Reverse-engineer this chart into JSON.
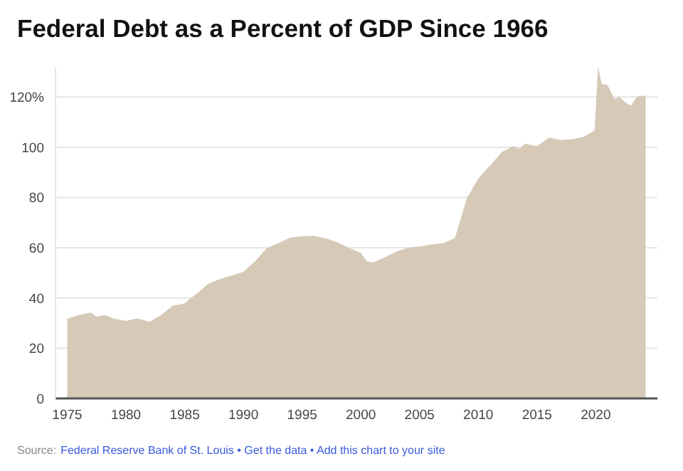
{
  "chart_data": {
    "type": "area",
    "title": "Federal Debt as a Percent of GDP Since 1966",
    "x": [
      1975,
      1976,
      1977,
      1977.5,
      1978.2,
      1979,
      1980,
      1981,
      1982,
      1983,
      1984,
      1985,
      1985.5,
      1986,
      1987,
      1988,
      1989,
      1990,
      1991,
      1992,
      1993,
      1994,
      1995,
      1996,
      1997,
      1998,
      1999,
      2000,
      2000.5,
      2001,
      2002,
      2003,
      2004,
      2005,
      2006,
      2007,
      2008,
      2008.5,
      2009,
      2010,
      2011,
      2012,
      2013,
      2013.5,
      2014,
      2015,
      2016,
      2017,
      2018,
      2019,
      2019.9,
      2020.2,
      2020.5,
      2021,
      2021.6,
      2022,
      2022.6,
      2023,
      2023.5,
      2024,
      2024.25
    ],
    "series": [
      {
        "color": "#d6c9b8",
        "values": [
          31.7,
          33.2,
          34.2,
          32.6,
          33.2,
          31.7,
          30.9,
          31.9,
          30.5,
          33.2,
          37,
          37.8,
          39.9,
          41.6,
          45.6,
          47.5,
          48.9,
          50.4,
          54.6,
          59.9,
          61.8,
          64.1,
          64.5,
          64.7,
          63.7,
          62.2,
          59.9,
          58,
          54.6,
          54.2,
          56.1,
          58.4,
          59.9,
          60.5,
          61.3,
          61.8,
          63.7,
          71.4,
          79.4,
          87.6,
          92.7,
          98.1,
          100.4,
          99.4,
          101.5,
          100.4,
          103.8,
          102.9,
          103.2,
          104.2,
          106.7,
          132,
          125.2,
          124.8,
          119.1,
          120,
          117.6,
          116.6,
          120,
          120.6,
          120.4
        ]
      }
    ],
    "xlim": [
      1974,
      2025.25
    ],
    "xticks": [
      1975,
      1980,
      1985,
      1990,
      1995,
      2000,
      2005,
      2010,
      2015,
      2020
    ],
    "ylim": [
      0,
      132
    ],
    "yticks": [
      0,
      20,
      40,
      60,
      80,
      100,
      {
        "value": 120,
        "label": "120%"
      }
    ],
    "grid": "y",
    "annotations": [
      "Source:",
      "Federal Reserve Bank of St. Louis • Get the data • Add this chart to your site"
    ]
  }
}
